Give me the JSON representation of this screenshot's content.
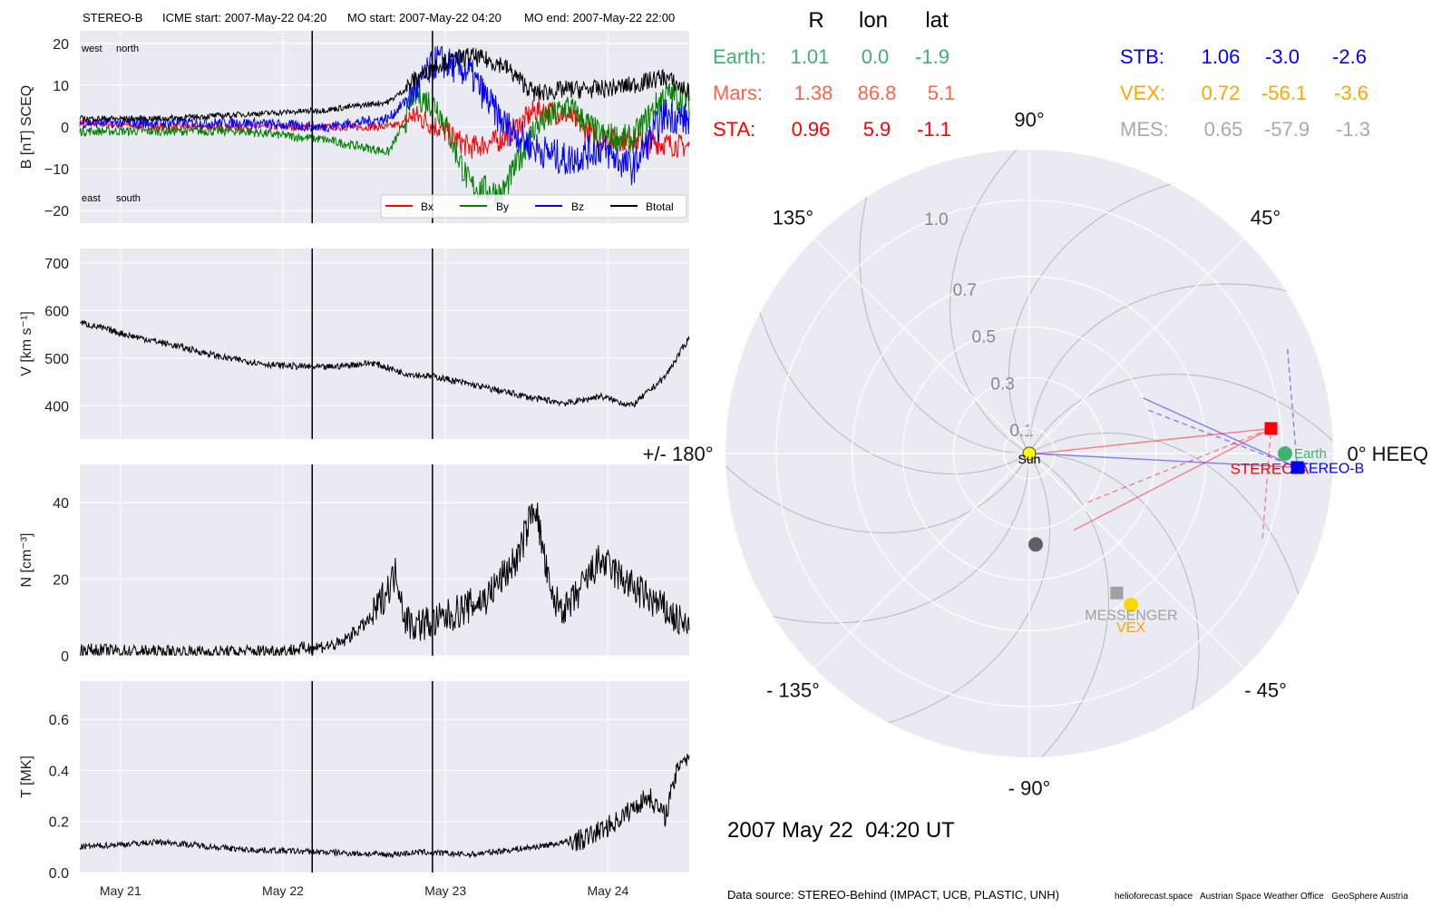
{
  "header": {
    "spacecraft": "STEREO-B",
    "icme_start": "ICME start: 2007-May-22 04:20",
    "mo_start": "MO start: 2007-May-22 04:20",
    "mo_end": "MO end: 2007-May-22 22:00"
  },
  "colors": {
    "panel_bg": "#eaeaf2",
    "bx": "#ff0000",
    "by": "#008000",
    "bz": "#0000ff",
    "btotal": "#000000",
    "earth": "#3cb371",
    "mars": "#ff6347",
    "sta": "#ff0000",
    "stb": "#0000ff",
    "vex": "#ffa500",
    "mes": "#a9a9a9"
  },
  "chart_data": [
    {
      "type": "line",
      "panel": "magnetic field",
      "ylabel": "B [nT] SCEQ",
      "ylim": [
        -23,
        23
      ],
      "yticks": [
        "20",
        "10",
        "0",
        "−10",
        "−20"
      ],
      "ytick_values": [
        20,
        10,
        0,
        -10,
        -20
      ],
      "x_range_days": [
        "2007-05-20 18:00",
        "2007-05-24 12:00"
      ],
      "annotations": [
        "west",
        "north",
        "east",
        "south"
      ],
      "series": [
        {
          "name": "Bx",
          "color": "#ff0000",
          "x_days": [
            0,
            0.5,
            1,
            1.5,
            1.9,
            2.0,
            2.05,
            2.2,
            2.4,
            2.6,
            2.8,
            3.0,
            3.2,
            3.4,
            3.6,
            3.8
          ],
          "values": [
            1,
            0,
            0,
            0,
            0,
            1,
            3,
            0,
            -5,
            -3,
            4,
            3,
            -3,
            -3,
            -4,
            -5
          ]
        },
        {
          "name": "By",
          "color": "#008000",
          "x_days": [
            0,
            0.5,
            1,
            1.5,
            1.9,
            2.0,
            2.05,
            2.2,
            2.4,
            2.6,
            2.8,
            3.0,
            3.2,
            3.4,
            3.6,
            3.8
          ],
          "values": [
            -1,
            -1,
            -1,
            -3,
            -6,
            1,
            8,
            5,
            -14,
            -16,
            0,
            5,
            -2,
            -3,
            8,
            6
          ]
        },
        {
          "name": "Bz",
          "color": "#0000ff",
          "x_days": [
            0,
            0.5,
            1,
            1.5,
            1.9,
            2.0,
            2.05,
            2.2,
            2.4,
            2.6,
            2.8,
            3.0,
            3.2,
            3.4,
            3.6,
            3.8
          ],
          "values": [
            1,
            1,
            1,
            0,
            2,
            6,
            8,
            16,
            13,
            1,
            -5,
            -8,
            -5,
            -10,
            3,
            1
          ]
        },
        {
          "name": "Btotal",
          "color": "#000000",
          "x_days": [
            0,
            0.5,
            1,
            1.5,
            1.9,
            2.0,
            2.05,
            2.2,
            2.4,
            2.6,
            2.8,
            3.0,
            3.2,
            3.4,
            3.6,
            3.8
          ],
          "values": [
            2,
            2,
            3,
            4,
            6,
            9,
            11,
            15,
            17,
            15,
            8,
            9,
            9,
            10,
            12,
            7
          ]
        }
      ]
    },
    {
      "type": "line",
      "panel": "speed",
      "ylabel": "V [km s⁻¹]",
      "ylim": [
        330,
        730
      ],
      "yticks": [
        "700",
        "600",
        "500",
        "400"
      ],
      "ytick_values": [
        700,
        600,
        500,
        400
      ],
      "series": [
        {
          "name": "",
          "color": "#000000",
          "x_days": [
            0,
            0.3,
            0.6,
            0.9,
            1.2,
            1.5,
            1.8,
            2.0,
            2.2,
            2.4,
            2.6,
            2.8,
            3.0,
            3.2,
            3.4,
            3.6,
            3.8
          ],
          "values": [
            575,
            548,
            525,
            500,
            485,
            480,
            490,
            468,
            460,
            445,
            430,
            415,
            405,
            420,
            400,
            460,
            570
          ]
        }
      ]
    },
    {
      "type": "line",
      "panel": "density",
      "ylabel": "N [cm⁻³]",
      "ylim": [
        0,
        50
      ],
      "yticks": [
        "40",
        "20",
        "0"
      ],
      "ytick_values": [
        40,
        20,
        0
      ],
      "series": [
        {
          "name": "",
          "color": "#000000",
          "x_days": [
            0,
            0.5,
            1,
            1.3,
            1.6,
            1.8,
            1.95,
            2.0,
            2.05,
            2.2,
            2.5,
            2.7,
            2.8,
            2.9,
            3.0,
            3.2,
            3.4,
            3.6,
            3.8
          ],
          "values": [
            1.5,
            1,
            1,
            1.5,
            3,
            10,
            22,
            10,
            8,
            9,
            15,
            26,
            40,
            15,
            12,
            25,
            18,
            12,
            5
          ]
        }
      ]
    },
    {
      "type": "line",
      "panel": "temperature",
      "ylabel": "T [MK]",
      "ylim": [
        0,
        0.75
      ],
      "yticks": [
        "0.6",
        "0.4",
        "0.2",
        "0.0"
      ],
      "ytick_values": [
        0.6,
        0.4,
        0.2,
        0.0
      ],
      "xticks": [
        "May 21",
        "May 22",
        "May 23",
        "May 24"
      ],
      "xtick_days": [
        0.25,
        1.25,
        2.25,
        3.25
      ],
      "vlines_days": [
        1.43,
        2.17
      ],
      "series": [
        {
          "name": "",
          "color": "#000000",
          "x_days": [
            0,
            0.5,
            1,
            1.5,
            1.9,
            2.1,
            2.4,
            2.8,
            3.1,
            3.3,
            3.5,
            3.6,
            3.7
          ],
          "values": [
            0.1,
            0.12,
            0.09,
            0.08,
            0.07,
            0.08,
            0.07,
            0.1,
            0.13,
            0.2,
            0.3,
            0.22,
            0.45
          ]
        }
      ]
    },
    {
      "type": "scatter",
      "panel": "polar positions",
      "r_ticks": [
        "0.1",
        "0.3",
        "0.5",
        "0.7",
        "1.0"
      ],
      "r_tick_values": [
        0.1,
        0.3,
        0.5,
        0.7,
        1.0
      ],
      "angle_labels": [
        {
          "angle": 0,
          "label": "0° HEEQ"
        },
        {
          "angle": 45,
          "label": "45°"
        },
        {
          "angle": 90,
          "label": "90°"
        },
        {
          "angle": 135,
          "label": "135°"
        },
        {
          "angle": 180,
          "label": "+/- 180°"
        },
        {
          "angle": -135,
          "label": "- 135°"
        },
        {
          "angle": -90,
          "label": "- 90°"
        },
        {
          "angle": -45,
          "label": "- 45°"
        }
      ],
      "bodies": [
        {
          "name": "Sun",
          "label": "Sun",
          "r": 0.0,
          "lon": 0.0,
          "color": "#ffff00",
          "marker": "circle"
        },
        {
          "name": "Earth",
          "label": "Earth",
          "r": 1.01,
          "lon": 0.0,
          "color": "#3cb371",
          "marker": "circle"
        },
        {
          "name": "STEREO-A",
          "label": "STEREO-A",
          "r": 0.96,
          "lon": 5.9,
          "color": "#ff0000",
          "marker": "square"
        },
        {
          "name": "STEREO-B",
          "label": "STEREO-B",
          "r": 1.06,
          "lon": -3.0,
          "color": "#0000ff",
          "marker": "square"
        },
        {
          "name": "Venus Express",
          "label": "VEX",
          "r": 0.72,
          "lon": -56.1,
          "color": "#ffd700",
          "marker": "circle"
        },
        {
          "name": "MESSENGER",
          "label": "MESSENGER",
          "r": 0.65,
          "lon": -57.9,
          "color": "#a0a0a0",
          "marker": "square"
        },
        {
          "name": "Mercury",
          "label": "",
          "r": 0.36,
          "lon": -86.0,
          "color": "#606060",
          "marker": "circle"
        }
      ]
    }
  ],
  "position_table": {
    "headers": [
      "R",
      "lon",
      "lat"
    ],
    "left_rows": [
      {
        "name": "Earth:",
        "r": "1.01",
        "lon": "0.0",
        "lat": "-1.9",
        "color": "#3cb371"
      },
      {
        "name": "Mars:",
        "r": "1.38",
        "lon": "86.8",
        "lat": "5.1",
        "color": "#ff6347"
      },
      {
        "name": "STA:",
        "r": "0.96",
        "lon": "5.9",
        "lat": "-1.1",
        "color": "#ff0000"
      }
    ],
    "right_rows": [
      {
        "name": "STB:",
        "r": "1.06",
        "lon": "-3.0",
        "lat": "-2.6",
        "color": "#0000ff"
      },
      {
        "name": "VEX:",
        "r": "0.72",
        "lon": "-56.1",
        "lat": "-3.6",
        "color": "#ffa500"
      },
      {
        "name": "MES:",
        "r": "0.65",
        "lon": "-57.9",
        "lat": "-1.3",
        "color": "#a9a9a9"
      }
    ]
  },
  "footer": {
    "datetime": "2007 May 22  04:20 UT",
    "source": "Data source: STEREO-Behind (IMPACT, UCB, PLASTIC, UNH)",
    "credits": "helioforecast.space   Austrian Space Weather Office   GeoSphere Austria"
  }
}
